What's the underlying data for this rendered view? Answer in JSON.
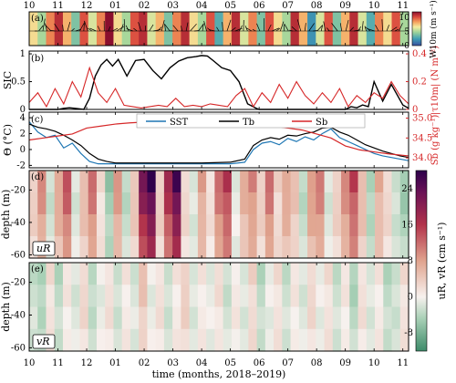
{
  "chart_data": [
    {
      "panel": "a",
      "type": "heatmap",
      "label": "(a)",
      "colorbar_label": "W10m (m s⁻¹)",
      "colorbar_ticks": [
        0,
        5,
        10
      ],
      "colorbar_range": [
        0,
        12
      ],
      "x": [
        0,
        0.3,
        0.6,
        0.9,
        1.2,
        1.5,
        1.8,
        2.1,
        2.4,
        2.7,
        3.0,
        3.3,
        3.6,
        3.9,
        4.2,
        4.5,
        4.8,
        5.1,
        5.4,
        5.7,
        6.0,
        6.3,
        6.6,
        6.9,
        7.2,
        7.5,
        7.8,
        8.1,
        8.4,
        8.7,
        9.0,
        9.3,
        9.6,
        9.9,
        10.2,
        10.5,
        10.8,
        11.1,
        11.4,
        11.7,
        12.0,
        12.3,
        12.6,
        12.9,
        13.2
      ],
      "wind_speed": [
        7,
        5,
        9,
        11,
        8,
        4,
        10,
        6,
        9,
        12,
        7,
        5,
        10,
        11,
        6,
        8,
        4,
        9,
        11,
        7,
        5,
        10,
        3,
        8,
        11,
        6,
        9,
        4,
        10,
        7,
        5,
        11,
        8,
        2,
        6,
        10,
        4,
        8,
        11,
        6,
        3,
        9,
        7,
        10,
        5
      ],
      "ylim": [
        0,
        1
      ]
    },
    {
      "panel": "b",
      "type": "line",
      "label": "(b)",
      "ylabel": "SIC",
      "ylabel_right": "|τ10m| (N m⁻²)",
      "y_ticks": [
        0,
        0.5,
        1
      ],
      "y_right_ticks": [
        0,
        0.2,
        0.4
      ],
      "series": [
        {
          "color": "#000000",
          "x": [
            0,
            0.5,
            1.0,
            1.2,
            1.4,
            1.6,
            1.9,
            2.1,
            2.3,
            2.5,
            2.7,
            2.9,
            3.1,
            3.4,
            3.7,
            4.0,
            4.3,
            4.6,
            4.9,
            5.2,
            5.5,
            5.8,
            6.0,
            6.2,
            6.4,
            6.7,
            7.0,
            7.3,
            7.6,
            7.9,
            8.0,
            8.5,
            9.0,
            9.5,
            10.0,
            10.5,
            11.0,
            11.2,
            11.4,
            11.6,
            11.8,
            12.0,
            12.3,
            12.6,
            13.0,
            13.2
          ],
          "values": [
            0,
            0,
            0,
            0.02,
            0.03,
            0.02,
            0,
            0.2,
            0.6,
            0.8,
            0.9,
            0.78,
            0.9,
            0.6,
            0.88,
            0.9,
            0.7,
            0.55,
            0.75,
            0.87,
            0.93,
            0.95,
            0.97,
            0.96,
            0.88,
            0.75,
            0.7,
            0.5,
            0.1,
            0.02,
            0,
            0,
            0,
            0,
            0,
            0,
            0,
            0.05,
            0.03,
            0.08,
            0.05,
            0.5,
            0.15,
            0.45,
            0.08,
            0.02
          ]
        },
        {
          "color": "#d62728",
          "axis": "right",
          "x": [
            0,
            0.3,
            0.6,
            0.9,
            1.2,
            1.5,
            1.8,
            2.1,
            2.4,
            2.7,
            3.0,
            3.3,
            3.6,
            3.9,
            4.2,
            4.5,
            4.8,
            5.1,
            5.4,
            5.7,
            6.0,
            6.3,
            6.6,
            6.9,
            7.2,
            7.5,
            7.8,
            8.1,
            8.4,
            8.7,
            9.0,
            9.3,
            9.6,
            9.9,
            10.2,
            10.5,
            10.8,
            11.1,
            11.4,
            11.7,
            12.0,
            12.3,
            12.6,
            12.9,
            13.2
          ],
          "values": [
            0.05,
            0.12,
            0.02,
            0.15,
            0.04,
            0.2,
            0.09,
            0.3,
            0.12,
            0.05,
            0.15,
            0.03,
            0.02,
            0.01,
            0.02,
            0.03,
            0.02,
            0.08,
            0.02,
            0.03,
            0.02,
            0.04,
            0.03,
            0.02,
            0.1,
            0.15,
            0.02,
            0.12,
            0.05,
            0.18,
            0.08,
            0.2,
            0.1,
            0.04,
            0.12,
            0.05,
            0.15,
            0.02,
            0.1,
            0.05,
            0.12,
            0.08,
            0.2,
            0.1,
            0.04
          ]
        }
      ]
    },
    {
      "panel": "c",
      "type": "line",
      "label": "(c)",
      "ylabel": "Θ (°C)",
      "ylabel_right": "Sb (g kg⁻¹)",
      "y_ticks": [
        -2,
        0,
        2,
        4
      ],
      "y_right_ticks": [
        34.0,
        34.5,
        35.0
      ],
      "series": [
        {
          "name": "SST",
          "color": "#1f77b4",
          "x": [
            0,
            0.3,
            0.6,
            0.9,
            1.2,
            1.5,
            1.8,
            2.1,
            2.4,
            2.7,
            3.0,
            4.0,
            5.0,
            6.0,
            7.0,
            7.5,
            7.8,
            8.1,
            8.4,
            8.7,
            9.0,
            9.3,
            9.6,
            9.9,
            10.2,
            10.5,
            10.8,
            11.1,
            11.4,
            11.7,
            12.0,
            12.3,
            12.6,
            12.9,
            13.2
          ],
          "values": [
            3.5,
            2.2,
            1.5,
            1.8,
            0.2,
            0.8,
            -0.5,
            -1.5,
            -1.8,
            -1.8,
            -1.8,
            -1.8,
            -1.8,
            -1.8,
            -1.8,
            -1.6,
            0.0,
            0.8,
            1.0,
            0.6,
            1.4,
            1.0,
            1.6,
            1.2,
            2.0,
            2.6,
            1.5,
            1.0,
            0.5,
            0.0,
            -0.5,
            -0.8,
            -1.0,
            -1.2,
            -1.4
          ]
        },
        {
          "name": "Tb",
          "color": "#000000",
          "x": [
            0,
            0.3,
            0.6,
            0.9,
            1.2,
            1.5,
            1.8,
            2.1,
            2.4,
            2.7,
            3.0,
            4.0,
            5.0,
            6.0,
            7.0,
            7.5,
            7.8,
            8.1,
            8.4,
            8.7,
            9.0,
            9.3,
            9.6,
            9.9,
            10.2,
            10.5,
            10.8,
            11.1,
            11.4,
            11.7,
            12.0,
            12.3,
            12.6,
            12.9,
            13.2
          ],
          "values": [
            3.2,
            2.8,
            2.6,
            2.3,
            1.8,
            1.2,
            0.5,
            -0.5,
            -1.2,
            -1.5,
            -1.7,
            -1.7,
            -1.7,
            -1.7,
            -1.6,
            -1.2,
            0.5,
            1.2,
            1.5,
            1.3,
            1.8,
            1.7,
            2.0,
            2.2,
            2.7,
            2.8,
            2.2,
            1.8,
            1.2,
            0.6,
            0.2,
            -0.2,
            -0.5,
            -0.8,
            -1.0
          ]
        },
        {
          "name": "Sb",
          "color": "#d62728",
          "axis": "right",
          "x": [
            0,
            0.5,
            1.0,
            1.5,
            2.0,
            2.5,
            3.0,
            3.5,
            4.0,
            4.5,
            5.0,
            5.5,
            6.0,
            6.5,
            7.0,
            7.5,
            8.0,
            8.5,
            9.0,
            9.5,
            10.0,
            10.5,
            11.0,
            11.5,
            12.0,
            12.5,
            13.2
          ],
          "values": [
            34.45,
            34.5,
            34.55,
            34.6,
            34.75,
            34.8,
            34.85,
            34.88,
            34.9,
            34.9,
            34.92,
            34.93,
            34.93,
            34.95,
            34.95,
            34.9,
            34.85,
            34.8,
            34.75,
            34.7,
            34.6,
            34.5,
            34.3,
            34.2,
            34.15,
            34.1,
            34.05
          ]
        }
      ]
    },
    {
      "panel": "d",
      "type": "heatmap",
      "label": "uR",
      "ylabel": "depth (m)",
      "y_ticks": [
        -20,
        -40,
        -60
      ],
      "ylim": [
        -62,
        -8
      ],
      "x": [
        0,
        0.3,
        0.6,
        0.9,
        1.2,
        1.5,
        1.8,
        2.1,
        2.4,
        2.7,
        3.0,
        3.3,
        3.6,
        3.9,
        4.2,
        4.5,
        4.8,
        5.1,
        5.4,
        5.7,
        6.0,
        6.3,
        6.6,
        6.9,
        7.2,
        7.5,
        7.8,
        8.1,
        8.4,
        8.7,
        9.0,
        9.3,
        9.6,
        9.9,
        10.2,
        10.5,
        10.8,
        11.1,
        11.4,
        11.7,
        12.0,
        12.3,
        12.6,
        12.9,
        13.2
      ],
      "values": [
        4,
        10,
        -3,
        8,
        14,
        -2,
        6,
        12,
        2,
        -6,
        9,
        -4,
        5,
        22,
        27,
        4,
        18,
        26,
        3,
        -2,
        8,
        2,
        12,
        16,
        -1,
        7,
        10,
        4,
        12,
        3,
        8,
        5,
        -4,
        9,
        11,
        -2,
        4,
        10,
        15,
        6,
        -5,
        7,
        3,
        -3,
        -6
      ]
    },
    {
      "panel": "e",
      "type": "heatmap",
      "label": "vR",
      "ylabel": "depth (m)",
      "y_ticks": [
        -20,
        -40,
        -60
      ],
      "ylim": [
        -62,
        -8
      ],
      "x": [
        0,
        0.3,
        0.6,
        0.9,
        1.2,
        1.5,
        1.8,
        2.1,
        2.4,
        2.7,
        3.0,
        3.3,
        3.6,
        3.9,
        4.2,
        4.5,
        4.8,
        5.1,
        5.4,
        5.7,
        6.0,
        6.3,
        6.6,
        6.9,
        7.2,
        7.5,
        7.8,
        8.1,
        8.4,
        8.7,
        9.0,
        9.3,
        9.6,
        9.9,
        10.2,
        10.5,
        10.8,
        11.1,
        11.4,
        11.7,
        12.0,
        12.3,
        12.6,
        12.9,
        13.2
      ],
      "values": [
        -3,
        -5,
        2,
        -4,
        1,
        -2,
        3,
        -4,
        -1,
        2,
        -3,
        1,
        -2,
        5,
        -1,
        2,
        -3,
        1,
        4,
        -2,
        1,
        -1,
        2,
        -3,
        1,
        -2,
        3,
        -4,
        -1,
        2,
        -3,
        1,
        -2,
        3,
        -1,
        2,
        -3,
        1,
        -5,
        2,
        -2,
        1,
        -4,
        -3,
        2
      ]
    }
  ],
  "shared": {
    "x_ticks": [
      "10",
      "11",
      "12",
      "01",
      "02",
      "03",
      "04",
      "05",
      "06",
      "07",
      "08",
      "09",
      "10",
      "11"
    ],
    "xlabel": "time (months, 2018–2019)",
    "colorbar_de": {
      "label": "uR, vR (cm s⁻¹)",
      "ticks": [
        -8,
        0,
        8,
        16,
        24
      ],
      "range": [
        -12,
        28
      ]
    }
  },
  "colors": {
    "black": "#000000",
    "red": "#d62728",
    "blue": "#1f77b4",
    "div_neg": "#2e7d4f",
    "div_zero": "#f7f1ee",
    "div_pos": "#b2182b",
    "div_max": "#2d004b"
  }
}
